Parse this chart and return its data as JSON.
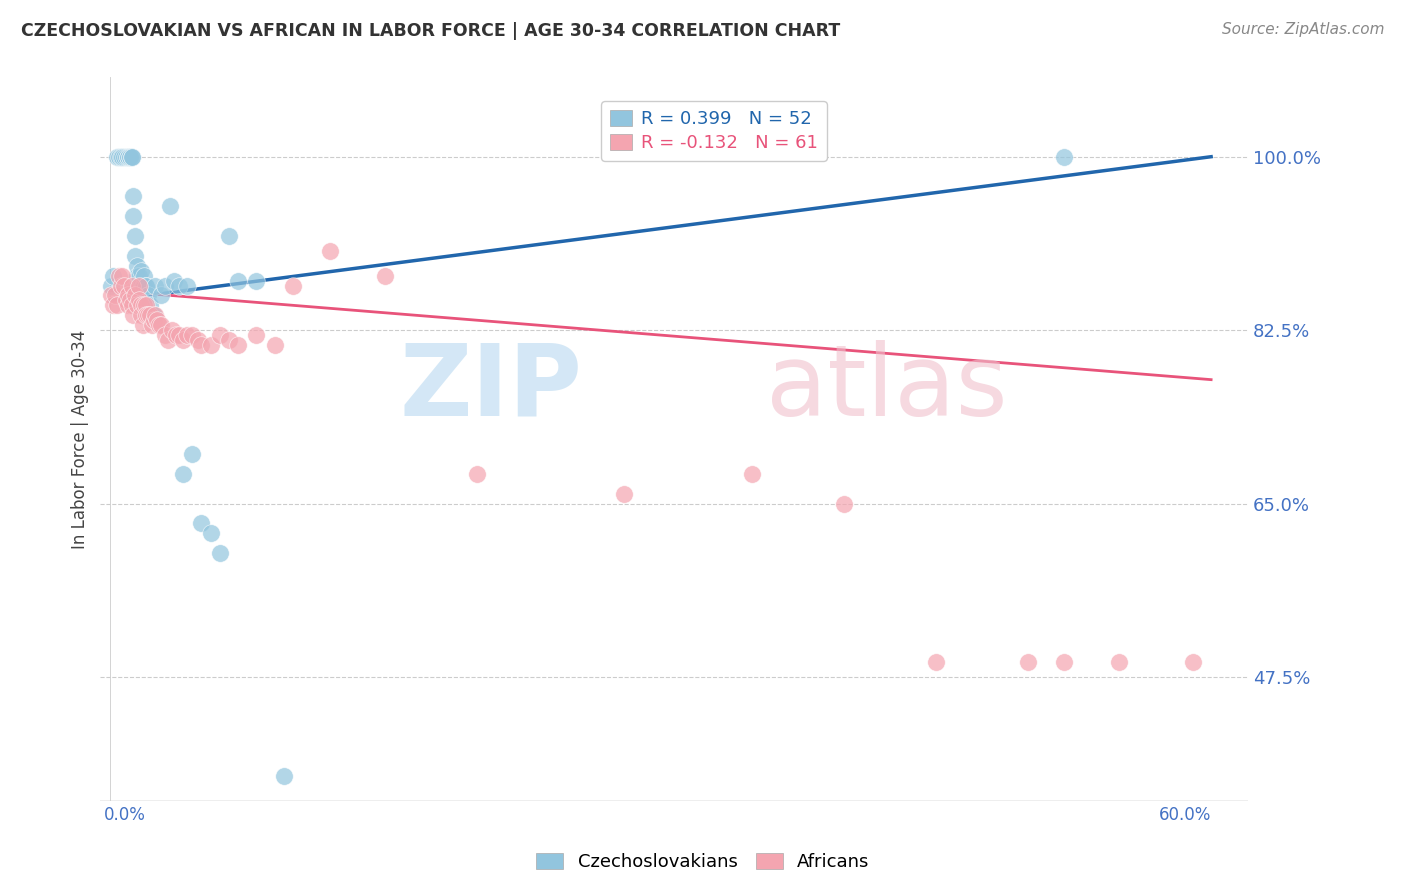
{
  "title": "CZECHOSLOVAKIAN VS AFRICAN IN LABOR FORCE | AGE 30-34 CORRELATION CHART",
  "source": "Source: ZipAtlas.com",
  "ylabel": "In Labor Force | Age 30-34",
  "ytick_labels": [
    "47.5%",
    "65.0%",
    "82.5%",
    "100.0%"
  ],
  "ytick_values": [
    0.475,
    0.65,
    0.825,
    1.0
  ],
  "xlim": [
    0.0,
    0.6
  ],
  "ylim": [
    0.35,
    1.08
  ],
  "legend_r1": "R = 0.399   N = 52",
  "legend_r2": "R = -0.132   N = 61",
  "czech_color": "#92c5de",
  "african_color": "#f4a5b0",
  "czech_line_color": "#2166ac",
  "african_line_color": "#e8537a",
  "czech_x": [
    0.001,
    0.002,
    0.004,
    0.005,
    0.006,
    0.007,
    0.008,
    0.009,
    0.01,
    0.01,
    0.011,
    0.011,
    0.012,
    0.012,
    0.013,
    0.013,
    0.014,
    0.014,
    0.015,
    0.015,
    0.015,
    0.016,
    0.016,
    0.017,
    0.017,
    0.018,
    0.018,
    0.019,
    0.019,
    0.02,
    0.02,
    0.021,
    0.022,
    0.023,
    0.024,
    0.025,
    0.028,
    0.03,
    0.033,
    0.035,
    0.038,
    0.04,
    0.042,
    0.045,
    0.05,
    0.055,
    0.06,
    0.065,
    0.07,
    0.08,
    0.095,
    0.52
  ],
  "czech_y": [
    0.87,
    0.88,
    1.0,
    1.0,
    1.0,
    1.0,
    1.0,
    1.0,
    1.0,
    1.0,
    1.0,
    1.0,
    1.0,
    1.0,
    0.96,
    0.94,
    0.92,
    0.9,
    0.89,
    0.88,
    0.87,
    0.87,
    0.88,
    0.87,
    0.885,
    0.87,
    0.87,
    0.87,
    0.88,
    0.87,
    0.87,
    0.86,
    0.85,
    0.84,
    0.84,
    0.87,
    0.86,
    0.87,
    0.95,
    0.875,
    0.87,
    0.68,
    0.87,
    0.7,
    0.63,
    0.62,
    0.6,
    0.92,
    0.875,
    0.875,
    0.375,
    1.0
  ],
  "african_x": [
    0.001,
    0.002,
    0.003,
    0.004,
    0.005,
    0.006,
    0.007,
    0.008,
    0.009,
    0.01,
    0.01,
    0.011,
    0.012,
    0.012,
    0.013,
    0.014,
    0.015,
    0.016,
    0.016,
    0.017,
    0.017,
    0.018,
    0.019,
    0.02,
    0.02,
    0.021,
    0.022,
    0.023,
    0.024,
    0.025,
    0.026,
    0.027,
    0.028,
    0.03,
    0.032,
    0.034,
    0.036,
    0.038,
    0.04,
    0.042,
    0.045,
    0.048,
    0.05,
    0.055,
    0.06,
    0.065,
    0.07,
    0.08,
    0.09,
    0.1,
    0.12,
    0.15,
    0.2,
    0.28,
    0.35,
    0.4,
    0.45,
    0.5,
    0.52,
    0.55,
    0.59
  ],
  "african_y": [
    0.86,
    0.85,
    0.86,
    0.85,
    0.88,
    0.87,
    0.88,
    0.87,
    0.855,
    0.85,
    0.86,
    0.855,
    0.85,
    0.87,
    0.84,
    0.86,
    0.85,
    0.87,
    0.855,
    0.85,
    0.84,
    0.83,
    0.85,
    0.85,
    0.84,
    0.84,
    0.84,
    0.83,
    0.835,
    0.84,
    0.835,
    0.83,
    0.83,
    0.82,
    0.815,
    0.825,
    0.82,
    0.82,
    0.815,
    0.82,
    0.82,
    0.815,
    0.81,
    0.81,
    0.82,
    0.815,
    0.81,
    0.82,
    0.81,
    0.87,
    0.905,
    0.88,
    0.68,
    0.66,
    0.68,
    0.65,
    0.49,
    0.49,
    0.49,
    0.49,
    0.49
  ]
}
